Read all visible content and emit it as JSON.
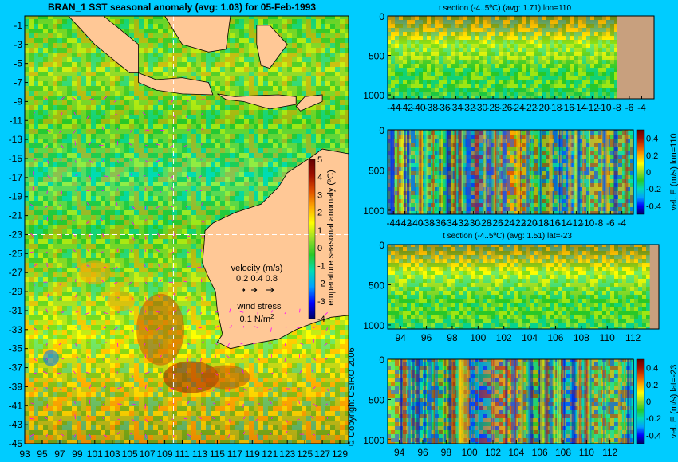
{
  "palette": {
    "background": "#00ccff",
    "land": "#ffc896",
    "land_section": "#c8a07e",
    "colormap": [
      "#000064",
      "#0000ff",
      "#00a0ff",
      "#00dcb4",
      "#28c828",
      "#96dc28",
      "#ffff00",
      "#ffaa00",
      "#e05000",
      "#a01000",
      "#640000"
    ]
  },
  "chart_data": [
    {
      "id": "map",
      "type": "heatmap",
      "title": "BRAN_1 SST seasonal anomaly (avg: 1.03) for 05-Feb-1993",
      "x_ticks": [
        "93",
        "95",
        "97",
        "99",
        "101",
        "103",
        "105",
        "107",
        "109",
        "111",
        "113",
        "115",
        "117",
        "119",
        "121",
        "123",
        "125",
        "127",
        "129"
      ],
      "y_ticks": [
        "-1",
        "-3",
        "-5",
        "-7",
        "-9",
        "-11",
        "-13",
        "-15",
        "-17",
        "-19",
        "-21",
        "-23",
        "-25",
        "-27",
        "-29",
        "-31",
        "-33",
        "-35",
        "-37",
        "-39",
        "-41",
        "-43",
        "-45"
      ],
      "xlim": [
        93,
        130
      ],
      "ylim": [
        -45,
        0
      ],
      "crosshair": {
        "lon": 110,
        "lat": -23
      },
      "colorbar": {
        "label": "temperature seasonal anomaly (ºC)",
        "ticks": [
          "5",
          "4",
          "3",
          "2",
          "1",
          "0",
          "-1",
          "-2",
          "-3",
          "-4"
        ],
        "range": [
          -4,
          5
        ]
      },
      "velocity_legend": {
        "title": "velocity (m/s)",
        "values": "0.2 0.4 0.8"
      },
      "wind_legend": {
        "title": "wind stress",
        "value_text": "0.1 N/m",
        "superscript": "2"
      },
      "copyright": "© Copyright CSIRO 2006"
    },
    {
      "id": "t-section-lon",
      "type": "heatmap",
      "title": "t section (-4..5ºC) (avg: 1.71) lon=110",
      "x_ticks": [
        "-44",
        "-42",
        "-40",
        "-38",
        "-36",
        "-34",
        "-32",
        "-30",
        "-28",
        "-26",
        "-24",
        "-22",
        "-20",
        "-18",
        "-16",
        "-14",
        "-12",
        "-10",
        "-8",
        "-6",
        "-4"
      ],
      "y_ticks": [
        "0",
        "500",
        "1000"
      ],
      "xlim": [
        -45,
        -2
      ],
      "ylim": [
        0,
        1050
      ],
      "land_from_x": -8
    },
    {
      "id": "v-section-lon",
      "type": "heatmap",
      "title": "",
      "x_ticks": [
        "-44",
        "-42",
        "-40",
        "-38",
        "-36",
        "-34",
        "-32",
        "-30",
        "-28",
        "-26",
        "-24",
        "-22",
        "-20",
        "-18",
        "-16",
        "-14",
        "-12",
        "-10",
        "-8",
        "-6",
        "-4"
      ],
      "y_ticks": [
        "0",
        "500",
        "1000"
      ],
      "xlim": [
        -45,
        -2
      ],
      "ylim": [
        0,
        1050
      ],
      "colorbar": {
        "label": "vel. E (m/s) lon=110",
        "ticks": [
          "0.4",
          "0.2",
          "0",
          "-0.2",
          "-0.4"
        ],
        "range": [
          -0.5,
          0.5
        ]
      }
    },
    {
      "id": "t-section-lat",
      "type": "heatmap",
      "title": "t section (-4..5ºC) (avg: 1.51) lat=-23",
      "x_ticks": [
        "94",
        "96",
        "98",
        "100",
        "102",
        "104",
        "106",
        "108",
        "110",
        "112"
      ],
      "y_ticks": [
        "0",
        "500",
        "1000"
      ],
      "xlim": [
        93,
        114
      ],
      "ylim": [
        0,
        1050
      ],
      "land_from_x": 113.3
    },
    {
      "id": "v-section-lat",
      "type": "heatmap",
      "title": "",
      "x_ticks": [
        "94",
        "96",
        "98",
        "100",
        "102",
        "104",
        "106",
        "108",
        "110",
        "112"
      ],
      "y_ticks": [
        "0",
        "500",
        "1000"
      ],
      "xlim": [
        93,
        114
      ],
      "ylim": [
        0,
        1050
      ],
      "colorbar": {
        "label": "vel. E (m/s) lat=-23",
        "ticks": [
          "0.4",
          "0.2",
          "0",
          "-0.2",
          "-0.4"
        ],
        "range": [
          -0.5,
          0.5
        ]
      }
    }
  ]
}
